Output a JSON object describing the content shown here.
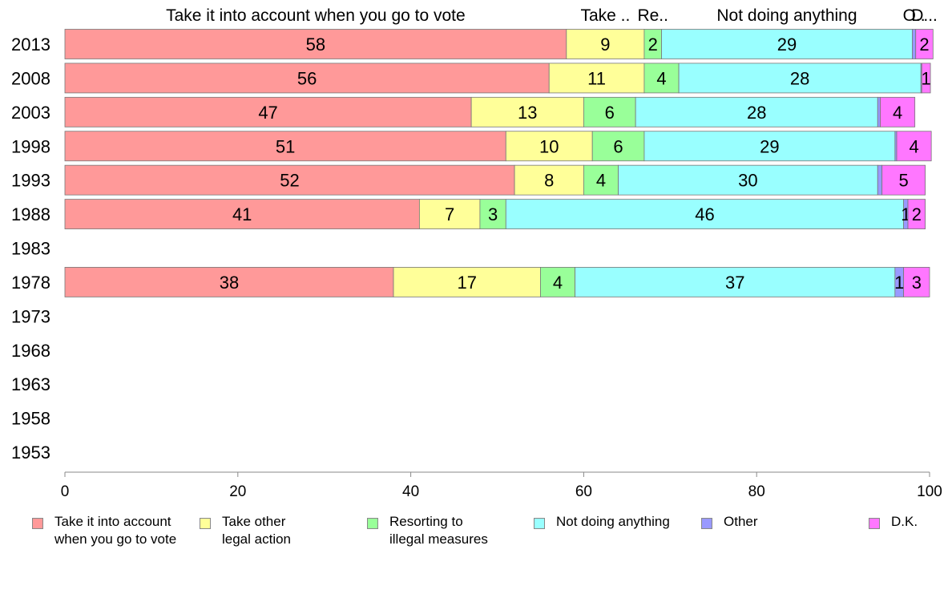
{
  "chart_data": {
    "type": "bar",
    "orientation": "horizontal",
    "stacked": true,
    "categories": [
      "2013",
      "2008",
      "2003",
      "1998",
      "1993",
      "1988",
      "1983",
      "1978",
      "1973",
      "1968",
      "1963",
      "1958",
      "1953"
    ],
    "series": [
      {
        "name": "Take it into account\nwhen you go to vote",
        "color": "#ff9999",
        "values": [
          58,
          56,
          47,
          51,
          52,
          41,
          null,
          38,
          null,
          null,
          null,
          null,
          null
        ]
      },
      {
        "name": "Take other\nlegal action",
        "color": "#ffff99",
        "values": [
          9,
          11,
          13,
          10,
          8,
          7,
          null,
          17,
          null,
          null,
          null,
          null,
          null
        ]
      },
      {
        "name": "Resorting to\nillegal measures",
        "color": "#99ff99",
        "values": [
          2,
          4,
          6,
          6,
          4,
          3,
          null,
          4,
          null,
          null,
          null,
          null,
          null
        ]
      },
      {
        "name": "Not doing anything",
        "color": "#99ffff",
        "values": [
          29,
          28,
          28,
          29,
          30,
          46,
          null,
          37,
          null,
          null,
          null,
          null,
          null
        ]
      },
      {
        "name": "Other",
        "color": "#9999ff",
        "values": [
          0.4,
          0.1,
          0.3,
          0.2,
          0.5,
          0.5,
          null,
          1,
          null,
          null,
          null,
          null,
          null
        ]
      },
      {
        "name": "D.K.",
        "color": "#ff77ff",
        "values": [
          2,
          1,
          4,
          4,
          5,
          2,
          null,
          3,
          null,
          null,
          null,
          null,
          null
        ]
      }
    ],
    "bar_labels": [
      [
        "58",
        "9",
        "2",
        "29",
        "",
        "2"
      ],
      [
        "56",
        "11",
        "4",
        "28",
        "",
        "1"
      ],
      [
        "47",
        "13",
        "6",
        "28",
        "",
        "4"
      ],
      [
        "51",
        "10",
        "6",
        "29",
        "",
        "4"
      ],
      [
        "52",
        "8",
        "4",
        "30",
        "",
        "5"
      ],
      [
        "41",
        "7",
        "3",
        "46",
        "1",
        "2"
      ],
      [
        "",
        "",
        "",
        "",
        "",
        ""
      ],
      [
        "38",
        "17",
        "4",
        "37",
        "1",
        "3"
      ],
      [
        "",
        "",
        "",
        "",
        "",
        ""
      ],
      [
        "",
        "",
        "",
        "",
        "",
        ""
      ],
      [
        "",
        "",
        "",
        "",
        "",
        ""
      ],
      [
        "",
        "",
        "",
        "",
        "",
        ""
      ],
      [
        "",
        "",
        "",
        "",
        "",
        ""
      ]
    ],
    "top_labels": [
      "Take it into account when you go to vote",
      "Take ..",
      "Re..",
      "Not doing anything",
      "O..",
      "D..."
    ],
    "xlim": [
      0,
      100
    ],
    "xticks": [
      0,
      20,
      40,
      60,
      80,
      100
    ],
    "grid": false,
    "legend_position": "bottom"
  }
}
